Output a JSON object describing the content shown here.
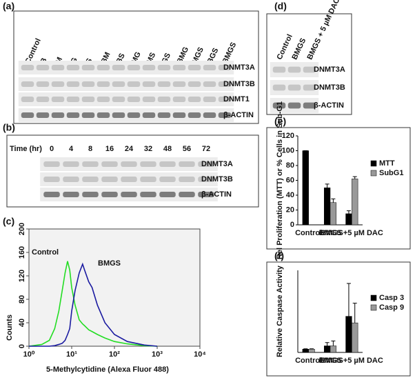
{
  "blots": [
    {
      "panel": "(a)",
      "lanes": [
        "Control",
        "B",
        "M",
        "G",
        "S",
        "BM",
        "BS",
        "MG",
        "MS",
        "GS",
        "BMG",
        "MGS",
        "BGS",
        "BMGS"
      ],
      "rows": [
        "DNMT3A",
        "DNMT3B",
        "DNMT1",
        "β-ACTIN"
      ]
    },
    {
      "panel": "(b)",
      "header": "Time (hr)",
      "lanes": [
        "0",
        "4",
        "8",
        "16",
        "24",
        "32",
        "48",
        "56",
        "72"
      ],
      "rows": [
        "DNMT3A",
        "DNMT3B",
        "β-ACTIN"
      ]
    },
    {
      "panel": "(d)",
      "lanes": [
        "Control",
        "BMGS",
        "BMGS + 5 µM DAC"
      ],
      "rows": [
        "DNMT3A",
        "DNMT3B",
        "β-ACTIN"
      ]
    }
  ],
  "chart_data": [
    {
      "type": "line",
      "panel": "(c)",
      "xlabel": "5-Methylcytidine (Alexa Fluor 488)",
      "ylabel": "Counts",
      "xscale": "log",
      "x": [
        1,
        2,
        3,
        4,
        5,
        6,
        7,
        8,
        9,
        10,
        12,
        15,
        18,
        20,
        25,
        30,
        40,
        60,
        100,
        200,
        500,
        1000
      ],
      "series": [
        {
          "name": "Control",
          "color": "#22dd22",
          "values": [
            0,
            3,
            10,
            30,
            60,
            95,
            125,
            145,
            130,
            100,
            70,
            45,
            38,
            35,
            28,
            25,
            20,
            14,
            8,
            4,
            1,
            0
          ]
        },
        {
          "name": "BMGS",
          "color": "#1a1aa0",
          "values": [
            0,
            0,
            0,
            1,
            3,
            5,
            10,
            20,
            30,
            60,
            95,
            125,
            140,
            130,
            110,
            100,
            70,
            40,
            20,
            8,
            2,
            0
          ]
        }
      ],
      "xlim": [
        1,
        10000
      ],
      "xticks": [
        {
          "value": 1,
          "label": "10⁰"
        },
        {
          "value": 10,
          "label": "10¹"
        },
        {
          "value": 100,
          "label": "10²"
        },
        {
          "value": 1000,
          "label": "10³"
        },
        {
          "value": 10000,
          "label": "10⁴"
        }
      ],
      "ylim": [
        0,
        200
      ],
      "yticks": [
        0,
        40,
        80,
        120,
        160,
        200
      ],
      "grid": false
    },
    {
      "type": "bar",
      "panel": "(e)",
      "ylabel": "Rel Proliferation (MTT) or % Cells in Sub-G1",
      "categories": [
        "Control",
        "BMGS",
        "BMGS+5 µM DAC"
      ],
      "series": [
        {
          "name": "MTT",
          "color": "#000000",
          "values": [
            100,
            50,
            15
          ],
          "errors": [
            0,
            5,
            4
          ]
        },
        {
          "name": "SubG1",
          "color": "#999999",
          "values": [
            0,
            30,
            62
          ],
          "errors": [
            0,
            5,
            3
          ]
        }
      ],
      "ylim": [
        0,
        120
      ],
      "yticks": [
        0,
        20,
        40,
        60,
        80,
        100,
        120
      ],
      "legend": "right"
    },
    {
      "type": "bar",
      "panel": "(f)",
      "ylabel": "Relative Caspase Activity",
      "categories": [
        "Control",
        "BMGS",
        "BMGS+5 µM DAC"
      ],
      "series": [
        {
          "name": "Casp 3",
          "color": "#000000",
          "values": [
            1,
            2,
            11
          ],
          "errors": [
            0.1,
            1,
            10
          ]
        },
        {
          "name": "Casp 9",
          "color": "#999999",
          "values": [
            1,
            2,
            9
          ],
          "errors": [
            0.1,
            1.5,
            6
          ]
        }
      ],
      "ylim": [
        0,
        25
      ],
      "legend": "right"
    }
  ]
}
